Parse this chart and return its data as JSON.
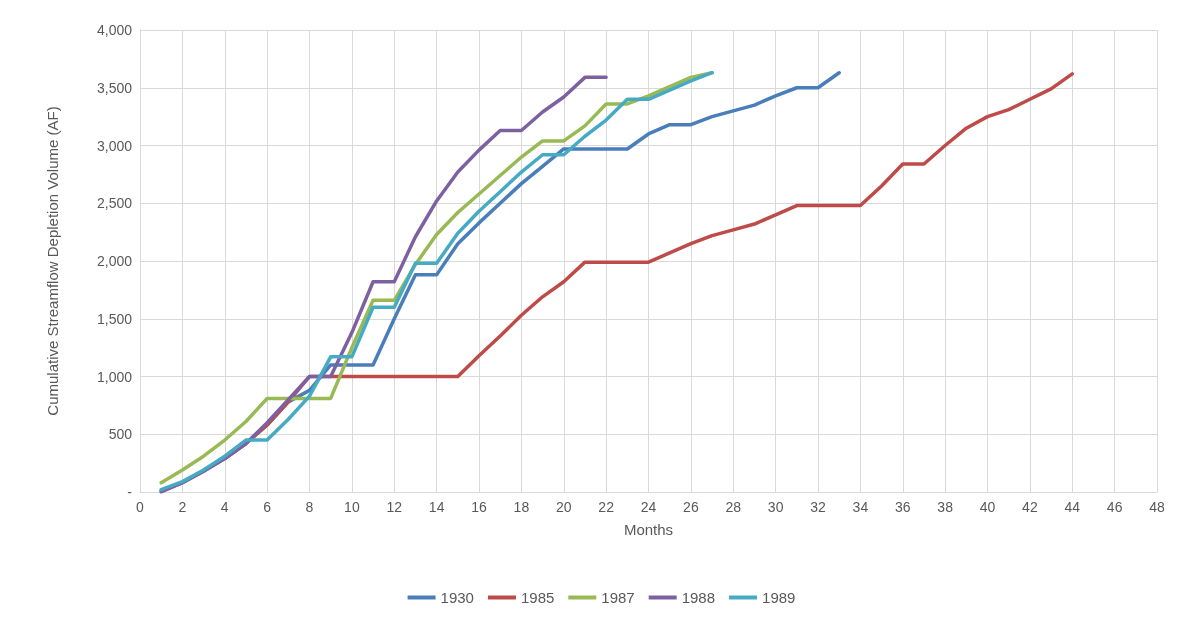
{
  "chart_data": {
    "type": "line",
    "xlabel": "Months",
    "ylabel": "Cumulative Streamflow Depletion Volume (AF)",
    "xlim": [
      0,
      48
    ],
    "xticks": [
      0,
      2,
      4,
      6,
      8,
      10,
      12,
      14,
      16,
      18,
      20,
      22,
      24,
      26,
      28,
      30,
      32,
      34,
      36,
      38,
      40,
      42,
      44,
      46,
      48
    ],
    "ylim": [
      0,
      4000
    ],
    "yticks": [
      {
        "value": 0,
        "label": "-"
      },
      500,
      {
        "value": 1000,
        "label": "1,000"
      },
      {
        "value": 1500,
        "label": "1,500"
      },
      {
        "value": 2000,
        "label": "2,000"
      },
      {
        "value": 2500,
        "label": "2,500"
      },
      {
        "value": 3000,
        "label": "3,000"
      },
      {
        "value": 3500,
        "label": "3,500"
      },
      {
        "value": 4000,
        "label": "4,000"
      }
    ],
    "grid": true,
    "legend": "bottom",
    "marker": "none",
    "line_style": "solid",
    "series": [
      {
        "name": "1930",
        "color": "#4a7ebb",
        "x": [
          1,
          2,
          3,
          4,
          5,
          6,
          7,
          8,
          9,
          10,
          11,
          12,
          13,
          14,
          15,
          16,
          17,
          18,
          19,
          20,
          21,
          22,
          23,
          24,
          25,
          26,
          27,
          28,
          29,
          30,
          31,
          32,
          33
        ],
        "values": [
          10,
          80,
          180,
          290,
          420,
          580,
          780,
          880,
          1100,
          1100,
          1100,
          1500,
          1880,
          1880,
          2150,
          2330,
          2500,
          2670,
          2820,
          2970,
          2970,
          2970,
          2970,
          3100,
          3180,
          3180,
          3250,
          3300,
          3350,
          3430,
          3500,
          3500,
          3630
        ]
      },
      {
        "name": "1985",
        "color": "#be4b48",
        "x": [
          4,
          5,
          6,
          7,
          8,
          9,
          10,
          11,
          12,
          13,
          14,
          15,
          16,
          17,
          18,
          19,
          20,
          21,
          22,
          23,
          24,
          25,
          26,
          27,
          28,
          29,
          30,
          31,
          32,
          33,
          34,
          35,
          36,
          37,
          38,
          39,
          40,
          41,
          42,
          43,
          44
        ],
        "values": [
          290,
          420,
          580,
          780,
          1000,
          1000,
          1000,
          1000,
          1000,
          1000,
          1000,
          1000,
          1180,
          1350,
          1530,
          1690,
          1820,
          1990,
          1990,
          1990,
          1990,
          2070,
          2150,
          2220,
          2270,
          2320,
          2400,
          2480,
          2480,
          2480,
          2480,
          2650,
          2840,
          2840,
          3000,
          3150,
          3250,
          3310,
          3400,
          3490,
          3620
        ]
      },
      {
        "name": "1987",
        "color": "#98b954",
        "x": [
          1,
          2,
          3,
          4,
          5,
          6,
          7,
          8,
          9,
          10,
          11,
          12,
          13,
          14,
          15,
          16,
          17,
          18,
          19,
          20,
          21,
          22,
          23,
          24,
          25,
          26,
          27
        ],
        "values": [
          80,
          190,
          310,
          450,
          610,
          810,
          810,
          810,
          810,
          1250,
          1660,
          1660,
          1970,
          2230,
          2420,
          2580,
          2740,
          2900,
          3040,
          3040,
          3170,
          3360,
          3360,
          3430,
          3510,
          3590,
          3630
        ]
      },
      {
        "name": "1988",
        "color": "#7d60a0",
        "x": [
          1,
          2,
          3,
          4,
          5,
          6,
          7,
          8,
          9,
          10,
          11,
          12,
          13,
          14,
          15,
          16,
          17,
          18,
          19,
          20,
          21,
          22
        ],
        "values": [
          0,
          80,
          180,
          290,
          420,
          600,
          800,
          1000,
          1000,
          1380,
          1820,
          1820,
          2210,
          2520,
          2770,
          2960,
          3130,
          3130,
          3290,
          3420,
          3590,
          3590
        ]
      },
      {
        "name": "1989",
        "color": "#46aac5",
        "x": [
          1,
          2,
          3,
          4,
          5,
          6,
          7,
          8,
          9,
          10,
          11,
          12,
          13,
          14,
          15,
          16,
          17,
          18,
          19,
          20,
          21,
          22,
          23,
          24,
          25,
          26,
          27
        ],
        "values": [
          20,
          90,
          190,
          310,
          450,
          450,
          630,
          830,
          1170,
          1170,
          1600,
          1600,
          1980,
          1980,
          2240,
          2430,
          2600,
          2770,
          2920,
          2920,
          3080,
          3220,
          3400,
          3400,
          3480,
          3560,
          3630
        ]
      }
    ]
  }
}
